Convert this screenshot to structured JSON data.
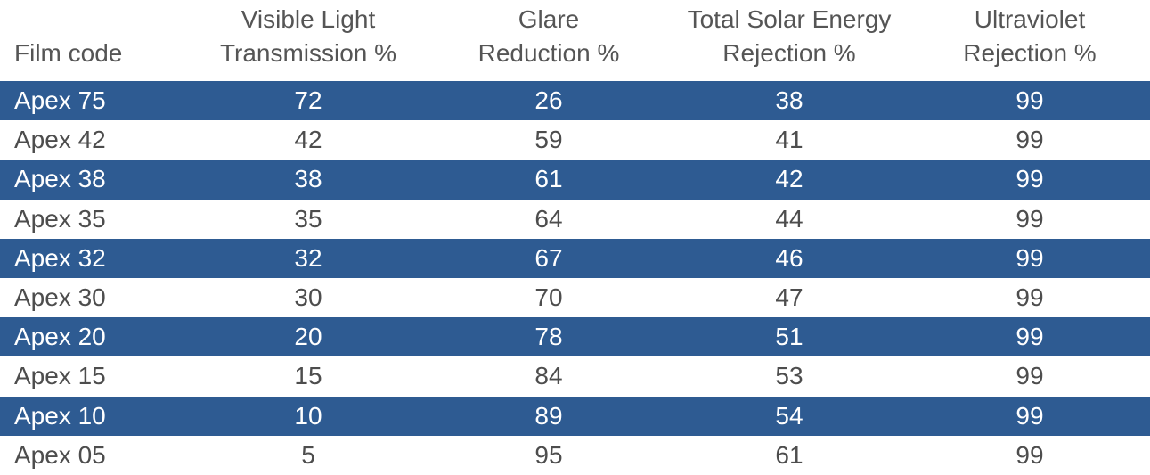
{
  "table": {
    "headers": [
      [
        "Film code"
      ],
      [
        "Visible Light",
        "Transmission %"
      ],
      [
        "Glare",
        "Reduction %"
      ],
      [
        "Total Solar Energy",
        "Rejection %"
      ],
      [
        "Ultraviolet",
        "Rejection %"
      ]
    ],
    "rows": [
      [
        "Apex 75",
        "72",
        "26",
        "38",
        "99"
      ],
      [
        "Apex 42",
        "42",
        "59",
        "41",
        "99"
      ],
      [
        "Apex 38",
        "38",
        "61",
        "42",
        "99"
      ],
      [
        "Apex 35",
        "35",
        "64",
        "44",
        "99"
      ],
      [
        "Apex 32",
        "32",
        "67",
        "46",
        "99"
      ],
      [
        "Apex 30",
        "30",
        "70",
        "47",
        "99"
      ],
      [
        "Apex 20",
        "20",
        "78",
        "51",
        "99"
      ],
      [
        "Apex 15",
        "15",
        "84",
        "53",
        "99"
      ],
      [
        "Apex 10",
        "10",
        "89",
        "54",
        "99"
      ],
      [
        "Apex 05",
        "5",
        "95",
        "61",
        "99"
      ]
    ],
    "band_color": "#2e5b92",
    "text_color": "#4d4d4d"
  }
}
